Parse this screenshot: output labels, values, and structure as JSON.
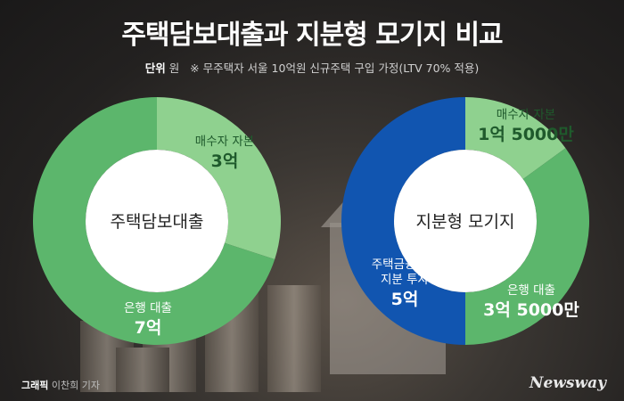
{
  "header": {
    "title": "주택담보대출과 지분형 모기지 비교",
    "unit_label": "단위",
    "unit": "원",
    "note": "※ 무주택자 서울 10억원 신규주택 구입 가정(LTV 70% 적용)"
  },
  "colors": {
    "light_green": "#8fd18f",
    "green": "#5cb66c",
    "blue": "#1155b0",
    "center": "#ffffff"
  },
  "chart_data": [
    {
      "type": "pie",
      "title": "주택담보대출",
      "slices": [
        {
          "name": "매수자 자본",
          "label": "3억",
          "value": 30,
          "color": "#8fd18f"
        },
        {
          "name": "은행 대출",
          "label": "7억",
          "value": 70,
          "color": "#5cb66c"
        }
      ]
    },
    {
      "type": "pie",
      "title": "지분형 모기지",
      "slices": [
        {
          "name": "매수자 자본",
          "label": "1억 5000만",
          "value": 15,
          "color": "#8fd18f"
        },
        {
          "name": "은행 대출",
          "label": "3억 5000만",
          "value": 35,
          "color": "#5cb66c"
        },
        {
          "name": "주택금융공사\n지분 투자",
          "label": "5억",
          "value": 50,
          "color": "#1155b0"
        }
      ]
    }
  ],
  "footer": {
    "credit_bold": "그래픽",
    "credit": "이찬희 기자",
    "logo": "Newsway"
  }
}
